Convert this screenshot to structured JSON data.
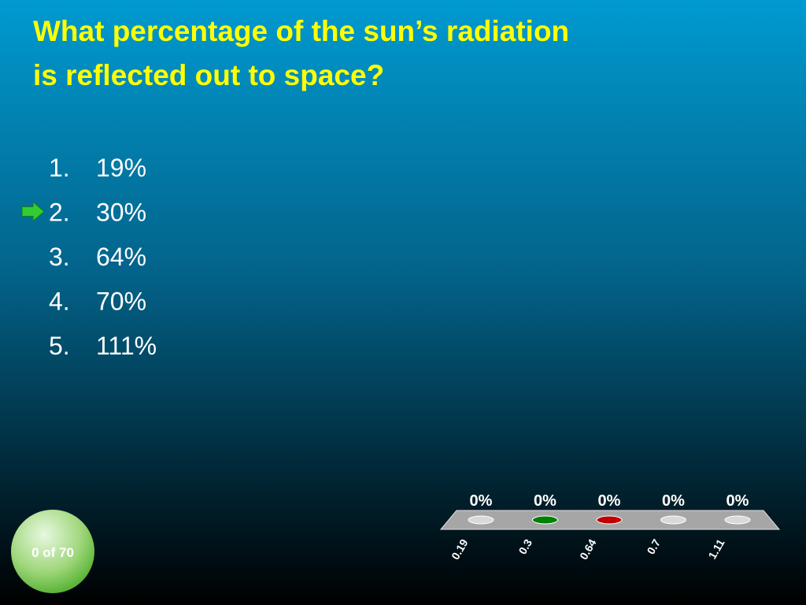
{
  "title_lines": [
    "What percentage of the sun’s radiation",
    "is reflected out to space?"
  ],
  "answers": [
    {
      "number": "1.",
      "text": "19%",
      "marked": false
    },
    {
      "number": "2.",
      "text": "30%",
      "marked": true
    },
    {
      "number": "3.",
      "text": "64%",
      "marked": false
    },
    {
      "number": "4.",
      "text": "70%",
      "marked": false
    },
    {
      "number": "5.",
      "text": "111%",
      "marked": false
    }
  ],
  "chart_data": {
    "type": "bar",
    "categories": [
      "0.19",
      "0.3",
      "0.64",
      "0.7",
      "1.11"
    ],
    "values": [
      0,
      0,
      0,
      0,
      0
    ],
    "value_labels": [
      "0%",
      "0%",
      "0%",
      "0%",
      "0%"
    ],
    "colors": [
      "#d9d9d9",
      "#008000",
      "#c00000",
      "#d9d9d9",
      "#d9d9d9"
    ]
  },
  "response_counter": "0 of 70"
}
